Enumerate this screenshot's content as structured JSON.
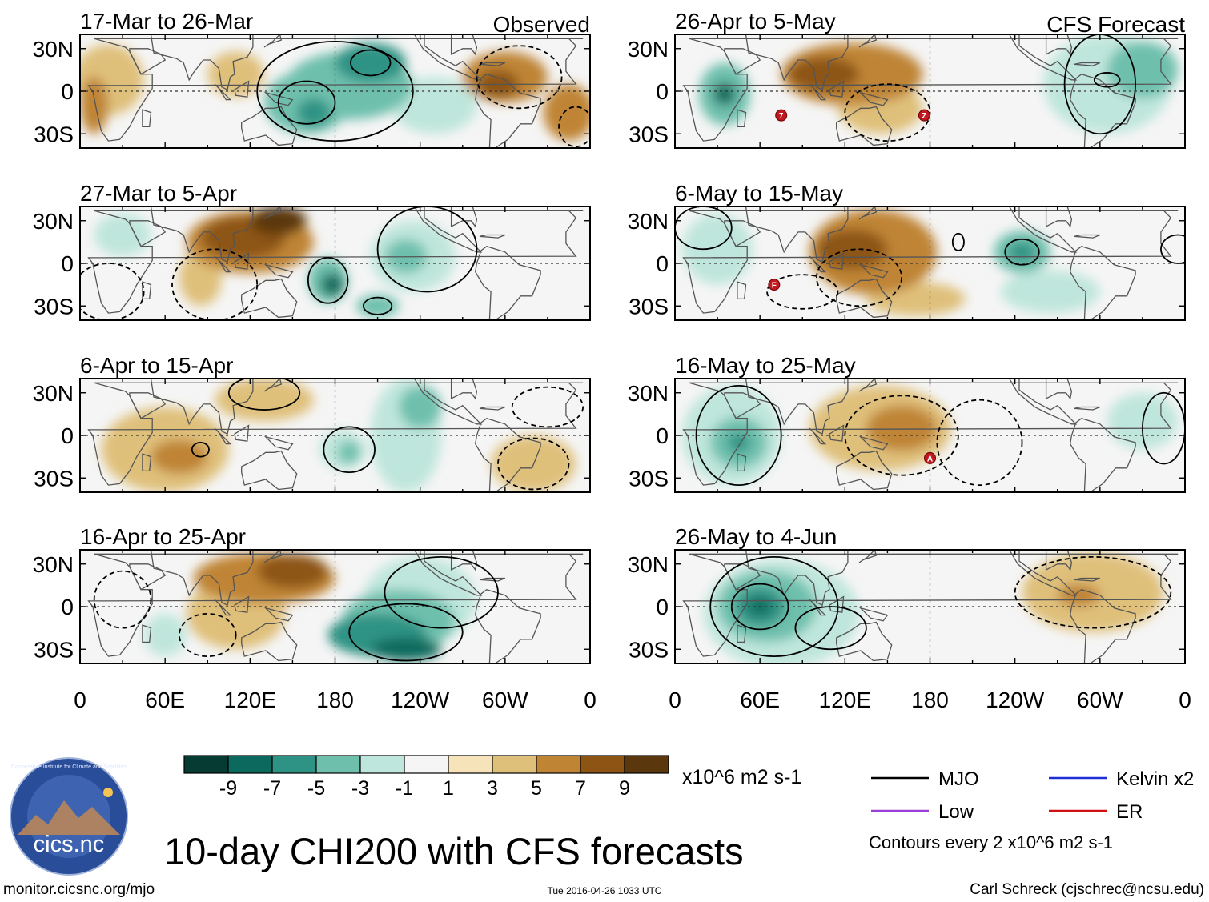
{
  "chart_data": {
    "type": "heatmap",
    "title": "10-day CHI200 with CFS forecasts",
    "variable": "CHI200",
    "x_ticks": [
      "0",
      "60E",
      "120E",
      "180",
      "120W",
      "60W",
      "0"
    ],
    "y_ticks": [
      "30N",
      "0",
      "30S"
    ],
    "xlim": [
      0,
      360
    ],
    "ylim": [
      -40,
      40
    ],
    "colorbar": {
      "levels": [
        -9,
        -7,
        -5,
        -3,
        -1,
        1,
        3,
        5,
        7,
        9
      ],
      "tick_labels": [
        "-9",
        "-7",
        "-5",
        "-3",
        "-1",
        "1",
        "3",
        "5",
        "7",
        "9"
      ],
      "colors": [
        "#053b33",
        "#0b6a5d",
        "#2e9384",
        "#6ec0ad",
        "#bfe6dc",
        "#f5f5f5",
        "#f6e3b9",
        "#dfc07a",
        "#bf8434",
        "#8d5414",
        "#5b370d"
      ],
      "units": "x10^6 m2 s-1"
    },
    "panels": [
      {
        "period": "17-Mar to 26-Mar",
        "column": "observed",
        "label": "Observed",
        "blobs": [
          {
            "lon": 190,
            "lat": 4,
            "rx": 45,
            "ry": 24,
            "val": -5
          },
          {
            "lon": 205,
            "lat": 20,
            "rx": 25,
            "ry": 14,
            "val": -7
          },
          {
            "lon": 160,
            "lat": -8,
            "rx": 30,
            "ry": 22,
            "val": -5
          },
          {
            "lon": 165,
            "lat": -15,
            "rx": 12,
            "ry": 10,
            "val": -7
          },
          {
            "lon": 250,
            "lat": -10,
            "rx": 30,
            "ry": 20,
            "val": -2
          },
          {
            "lon": 110,
            "lat": 12,
            "rx": 20,
            "ry": 16,
            "val": 3
          },
          {
            "lon": 20,
            "lat": 8,
            "rx": 25,
            "ry": 25,
            "val": 3
          },
          {
            "lon": 10,
            "lat": -10,
            "rx": 10,
            "ry": 20,
            "val": 5
          },
          {
            "lon": 300,
            "lat": 10,
            "rx": 30,
            "ry": 18,
            "val": 5
          },
          {
            "lon": 295,
            "lat": 5,
            "rx": 15,
            "ry": 10,
            "val": 7
          },
          {
            "lon": 345,
            "lat": -15,
            "rx": 18,
            "ry": 20,
            "val": 5
          }
        ],
        "contours": [
          {
            "lon": 180,
            "lat": 0,
            "rx": 55,
            "ry": 35,
            "style": "solid"
          },
          {
            "lon": 205,
            "lat": 20,
            "rx": 14,
            "ry": 9,
            "style": "solid"
          },
          {
            "lon": 160,
            "lat": -8,
            "rx": 20,
            "ry": 15,
            "style": "solid"
          },
          {
            "lon": 310,
            "lat": 10,
            "rx": 30,
            "ry": 22,
            "style": "dashed"
          },
          {
            "lon": 350,
            "lat": -25,
            "rx": 12,
            "ry": 14,
            "style": "dashed"
          }
        ]
      },
      {
        "period": "26-Apr to 5-May",
        "column": "forecast",
        "label": "CFS Forecast",
        "blobs": [
          {
            "lon": 125,
            "lat": 12,
            "rx": 50,
            "ry": 22,
            "val": 5
          },
          {
            "lon": 105,
            "lat": 12,
            "rx": 25,
            "ry": 12,
            "val": 7
          },
          {
            "lon": 145,
            "lat": -12,
            "rx": 30,
            "ry": 18,
            "val": 3
          },
          {
            "lon": 35,
            "lat": -2,
            "rx": 18,
            "ry": 22,
            "val": -5
          },
          {
            "lon": 35,
            "lat": -2,
            "rx": 8,
            "ry": 8,
            "val": -9
          },
          {
            "lon": 305,
            "lat": 5,
            "rx": 45,
            "ry": 35,
            "val": -3
          },
          {
            "lon": 330,
            "lat": 15,
            "rx": 25,
            "ry": 20,
            "val": -5
          }
        ],
        "contours": [
          {
            "lon": 300,
            "lat": 5,
            "rx": 25,
            "ry": 35,
            "style": "solid"
          },
          {
            "lon": 305,
            "lat": 8,
            "rx": 9,
            "ry": 5,
            "style": "solid"
          },
          {
            "lon": 150,
            "lat": -15,
            "rx": 30,
            "ry": 20,
            "style": "dashed"
          }
        ]
      },
      {
        "period": "27-Mar to 5-Apr",
        "column": "observed",
        "label": "",
        "blobs": [
          {
            "lon": 120,
            "lat": 15,
            "rx": 45,
            "ry": 22,
            "val": 5
          },
          {
            "lon": 115,
            "lat": 18,
            "rx": 30,
            "ry": 15,
            "val": 7
          },
          {
            "lon": 140,
            "lat": 30,
            "rx": 20,
            "ry": 10,
            "val": 9
          },
          {
            "lon": 85,
            "lat": -10,
            "rx": 15,
            "ry": 20,
            "val": 3
          },
          {
            "lon": 175,
            "lat": -12,
            "rx": 14,
            "ry": 16,
            "val": -5
          },
          {
            "lon": 178,
            "lat": -15,
            "rx": 8,
            "ry": 8,
            "val": -9
          },
          {
            "lon": 235,
            "lat": 5,
            "rx": 30,
            "ry": 25,
            "val": -3
          },
          {
            "lon": 230,
            "lat": 5,
            "rx": 15,
            "ry": 12,
            "val": -5
          },
          {
            "lon": 210,
            "lat": -30,
            "rx": 15,
            "ry": 8,
            "val": -5
          },
          {
            "lon": 30,
            "lat": 20,
            "rx": 20,
            "ry": 15,
            "val": -3
          }
        ],
        "contours": [
          {
            "lon": 175,
            "lat": -12,
            "rx": 14,
            "ry": 16,
            "style": "solid"
          },
          {
            "lon": 245,
            "lat": 10,
            "rx": 35,
            "ry": 30,
            "style": "solid"
          },
          {
            "lon": 210,
            "lat": -30,
            "rx": 10,
            "ry": 6,
            "style": "solid"
          },
          {
            "lon": 95,
            "lat": -15,
            "rx": 30,
            "ry": 25,
            "style": "dashed"
          },
          {
            "lon": 20,
            "lat": -20,
            "rx": 25,
            "ry": 20,
            "style": "dashed"
          }
        ]
      },
      {
        "period": "6-May to 15-May",
        "column": "forecast",
        "label": "",
        "blobs": [
          {
            "lon": 140,
            "lat": 8,
            "rx": 45,
            "ry": 30,
            "val": 5
          },
          {
            "lon": 125,
            "lat": 10,
            "rx": 25,
            "ry": 14,
            "val": 7
          },
          {
            "lon": 170,
            "lat": -25,
            "rx": 35,
            "ry": 12,
            "val": 3
          },
          {
            "lon": 30,
            "lat": 10,
            "rx": 25,
            "ry": 25,
            "val": -3
          },
          {
            "lon": 245,
            "lat": 8,
            "rx": 20,
            "ry": 15,
            "val": -5
          },
          {
            "lon": 245,
            "lat": 8,
            "rx": 10,
            "ry": 7,
            "val": -7
          },
          {
            "lon": 265,
            "lat": -20,
            "rx": 35,
            "ry": 15,
            "val": -3
          }
        ],
        "contours": [
          {
            "lon": 245,
            "lat": 8,
            "rx": 12,
            "ry": 9,
            "style": "solid"
          },
          {
            "lon": 200,
            "lat": 15,
            "rx": 4,
            "ry": 6,
            "style": "solid"
          },
          {
            "lon": 355,
            "lat": 10,
            "rx": 12,
            "ry": 10,
            "style": "solid"
          },
          {
            "lon": 20,
            "lat": 25,
            "rx": 20,
            "ry": 15,
            "style": "solid"
          },
          {
            "lon": 90,
            "lat": -20,
            "rx": 25,
            "ry": 12,
            "style": "dashed"
          },
          {
            "lon": 130,
            "lat": -10,
            "rx": 30,
            "ry": 20,
            "style": "dashed"
          }
        ]
      },
      {
        "period": "6-Apr to 15-Apr",
        "column": "observed",
        "label": "",
        "blobs": [
          {
            "lon": 60,
            "lat": -10,
            "rx": 45,
            "ry": 30,
            "val": 3
          },
          {
            "lon": 70,
            "lat": -15,
            "rx": 20,
            "ry": 12,
            "val": 5
          },
          {
            "lon": 130,
            "lat": 25,
            "rx": 35,
            "ry": 15,
            "val": 3
          },
          {
            "lon": 185,
            "lat": -10,
            "rx": 16,
            "ry": 14,
            "val": -3
          },
          {
            "lon": 190,
            "lat": -12,
            "rx": 8,
            "ry": 8,
            "val": -5
          },
          {
            "lon": 230,
            "lat": 0,
            "rx": 25,
            "ry": 40,
            "val": -3
          },
          {
            "lon": 240,
            "lat": 20,
            "rx": 15,
            "ry": 15,
            "val": -5
          },
          {
            "lon": 320,
            "lat": -20,
            "rx": 30,
            "ry": 20,
            "val": 3
          }
        ],
        "contours": [
          {
            "lon": 190,
            "lat": -10,
            "rx": 18,
            "ry": 16,
            "style": "solid"
          },
          {
            "lon": 130,
            "lat": 30,
            "rx": 25,
            "ry": 12,
            "style": "solid"
          },
          {
            "lon": 85,
            "lat": -10,
            "rx": 6,
            "ry": 5,
            "style": "solid"
          },
          {
            "lon": 320,
            "lat": -20,
            "rx": 25,
            "ry": 18,
            "style": "dashed"
          },
          {
            "lon": 330,
            "lat": 20,
            "rx": 25,
            "ry": 14,
            "style": "dashed"
          }
        ]
      },
      {
        "period": "16-May to 25-May",
        "column": "forecast",
        "label": "",
        "blobs": [
          {
            "lon": 40,
            "lat": 0,
            "rx": 35,
            "ry": 35,
            "val": -3
          },
          {
            "lon": 45,
            "lat": -5,
            "rx": 20,
            "ry": 18,
            "val": -5
          },
          {
            "lon": 45,
            "lat": -5,
            "rx": 8,
            "ry": 7,
            "val": -7
          },
          {
            "lon": 145,
            "lat": 5,
            "rx": 50,
            "ry": 30,
            "val": 3
          },
          {
            "lon": 160,
            "lat": 5,
            "rx": 25,
            "ry": 16,
            "val": 5
          },
          {
            "lon": 330,
            "lat": 10,
            "rx": 25,
            "ry": 20,
            "val": -2
          }
        ],
        "contours": [
          {
            "lon": 45,
            "lat": 0,
            "rx": 30,
            "ry": 35,
            "style": "solid"
          },
          {
            "lon": 345,
            "lat": 5,
            "rx": 15,
            "ry": 25,
            "style": "solid"
          },
          {
            "lon": 160,
            "lat": 0,
            "rx": 40,
            "ry": 28,
            "style": "dashed"
          },
          {
            "lon": 215,
            "lat": -5,
            "rx": 30,
            "ry": 30,
            "style": "dashed"
          }
        ]
      },
      {
        "period": "16-Apr to 25-Apr",
        "column": "observed",
        "label": "",
        "blobs": [
          {
            "lon": 130,
            "lat": 20,
            "rx": 50,
            "ry": 18,
            "val": 5
          },
          {
            "lon": 150,
            "lat": 25,
            "rx": 25,
            "ry": 12,
            "val": 7
          },
          {
            "lon": 110,
            "lat": -5,
            "rx": 35,
            "ry": 25,
            "val": 3
          },
          {
            "lon": 210,
            "lat": -20,
            "rx": 35,
            "ry": 15,
            "val": -7
          },
          {
            "lon": 230,
            "lat": -30,
            "rx": 25,
            "ry": 8,
            "val": -9
          },
          {
            "lon": 240,
            "lat": 5,
            "rx": 40,
            "ry": 30,
            "val": -3
          },
          {
            "lon": 225,
            "lat": -10,
            "rx": 40,
            "ry": 22,
            "val": -5
          },
          {
            "lon": 60,
            "lat": -20,
            "rx": 15,
            "ry": 15,
            "val": -2
          }
        ],
        "contours": [
          {
            "lon": 230,
            "lat": -18,
            "rx": 40,
            "ry": 20,
            "style": "solid"
          },
          {
            "lon": 255,
            "lat": 10,
            "rx": 40,
            "ry": 25,
            "style": "solid"
          },
          {
            "lon": 30,
            "lat": 5,
            "rx": 20,
            "ry": 20,
            "style": "dashed"
          },
          {
            "lon": 90,
            "lat": -20,
            "rx": 20,
            "ry": 15,
            "style": "dashed"
          }
        ]
      },
      {
        "period": "26-May to 4-Jun",
        "column": "forecast",
        "label": "",
        "blobs": [
          {
            "lon": 75,
            "lat": -5,
            "rx": 55,
            "ry": 38,
            "val": -3
          },
          {
            "lon": 65,
            "lat": 0,
            "rx": 35,
            "ry": 25,
            "val": -5
          },
          {
            "lon": 60,
            "lat": 0,
            "rx": 18,
            "ry": 14,
            "val": -7
          },
          {
            "lon": 60,
            "lat": 0,
            "rx": 8,
            "ry": 6,
            "val": -9
          },
          {
            "lon": 295,
            "lat": 10,
            "rx": 50,
            "ry": 28,
            "val": 3
          },
          {
            "lon": 285,
            "lat": 8,
            "rx": 15,
            "ry": 8,
            "val": 5
          }
        ],
        "contours": [
          {
            "lon": 70,
            "lat": 0,
            "rx": 45,
            "ry": 35,
            "style": "solid"
          },
          {
            "lon": 60,
            "lat": 0,
            "rx": 20,
            "ry": 16,
            "style": "solid"
          },
          {
            "lon": 110,
            "lat": -15,
            "rx": 25,
            "ry": 15,
            "style": "solid"
          },
          {
            "lon": 295,
            "lat": 10,
            "rx": 55,
            "ry": 25,
            "style": "dashed"
          }
        ]
      }
    ],
    "legend": [
      {
        "name": "MJO",
        "color": "#000000"
      },
      {
        "name": "Kelvin x2",
        "color": "#1f2fd6"
      },
      {
        "name": "Low",
        "color": "#9b3fd9"
      },
      {
        "name": "ER",
        "color": "#d01010"
      }
    ],
    "storm_markers": [
      {
        "panel": 2,
        "lon": 75,
        "lat": -17,
        "label": "7"
      },
      {
        "panel": 2,
        "lon": 176,
        "lat": -17,
        "label": "Z"
      },
      {
        "panel": 4,
        "lon": 70,
        "lat": -15,
        "label": "F"
      },
      {
        "panel": 6,
        "lon": 180,
        "lat": -16,
        "label": "A"
      }
    ]
  },
  "logo": {
    "text": "cics.nc",
    "ring_text": "Cooperative Institute for Climate and Satellites"
  },
  "legend_note": "Contours every 2 x10^6 m2 s-1",
  "footer": {
    "left": "monitor.cicsnc.org/mjo",
    "center": "Tue 2016-04-26 1033 UTC",
    "right": "Carl Schreck (cjschrec@ncsu.edu)"
  }
}
